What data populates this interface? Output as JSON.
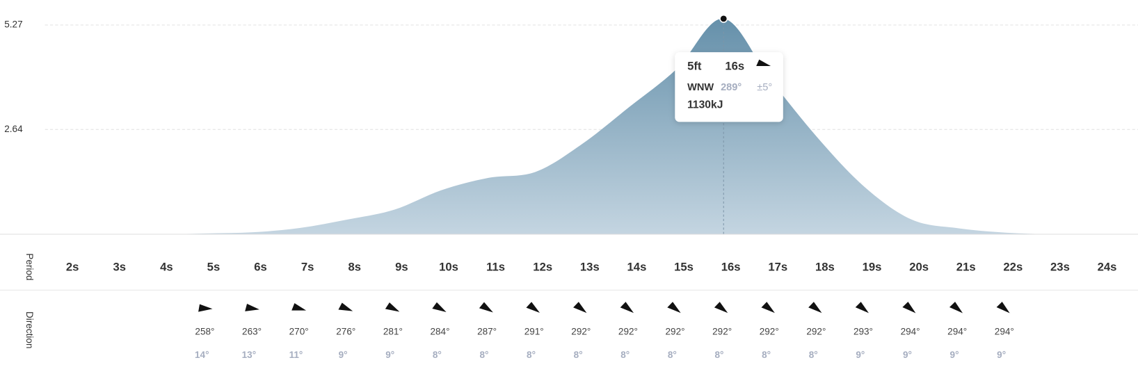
{
  "chart_data": {
    "type": "area",
    "y_axis_label": "Period",
    "direction_label": "Direction",
    "categories": [
      "2s",
      "3s",
      "4s",
      "5s",
      "6s",
      "7s",
      "8s",
      "9s",
      "10s",
      "11s",
      "12s",
      "13s",
      "14s",
      "15s",
      "16s",
      "17s",
      "18s",
      "19s",
      "20s",
      "21s",
      "22s",
      "23s",
      "24s"
    ],
    "values": [
      0,
      0,
      0,
      0.02,
      0.05,
      0.16,
      0.37,
      0.62,
      1.11,
      1.42,
      1.57,
      2.28,
      3.21,
      4.16,
      5.43,
      3.89,
      2.43,
      1.19,
      0.37,
      0.15,
      0.04,
      0,
      0
    ],
    "color": "#6a93ad",
    "ylim": [
      0,
      5.9
    ],
    "yticks": [
      2.64,
      5.27
    ],
    "grid": true,
    "direction": {
      "values": [
        null,
        null,
        null,
        258,
        263,
        270,
        276,
        281,
        284,
        287,
        291,
        292,
        292,
        292,
        292,
        292,
        292,
        293,
        294,
        294,
        294,
        null,
        null
      ],
      "value_labels": [
        null,
        null,
        null,
        "258°",
        "263°",
        "270°",
        "276°",
        "281°",
        "284°",
        "287°",
        "291°",
        "292°",
        "292°",
        "292°",
        "292°",
        "292°",
        "292°",
        "293°",
        "294°",
        "294°",
        "294°",
        null,
        null
      ],
      "spread": [
        null,
        null,
        null,
        14,
        13,
        11,
        9,
        9,
        8,
        8,
        8,
        8,
        8,
        8,
        8,
        8,
        8,
        9,
        9,
        9,
        9,
        null,
        null
      ],
      "spread_labels": [
        null,
        null,
        null,
        "14°",
        "13°",
        "11°",
        "9°",
        "9°",
        "8°",
        "8°",
        "8°",
        "8°",
        "8°",
        "8°",
        "8°",
        "8°",
        "8°",
        "9°",
        "9°",
        "9°",
        "9°",
        null,
        null
      ]
    },
    "tooltip": {
      "height": "5ft",
      "period": "16s",
      "compass": "WNW",
      "direction": "289°",
      "spread": "±5°",
      "energy": "1130kJ"
    }
  }
}
